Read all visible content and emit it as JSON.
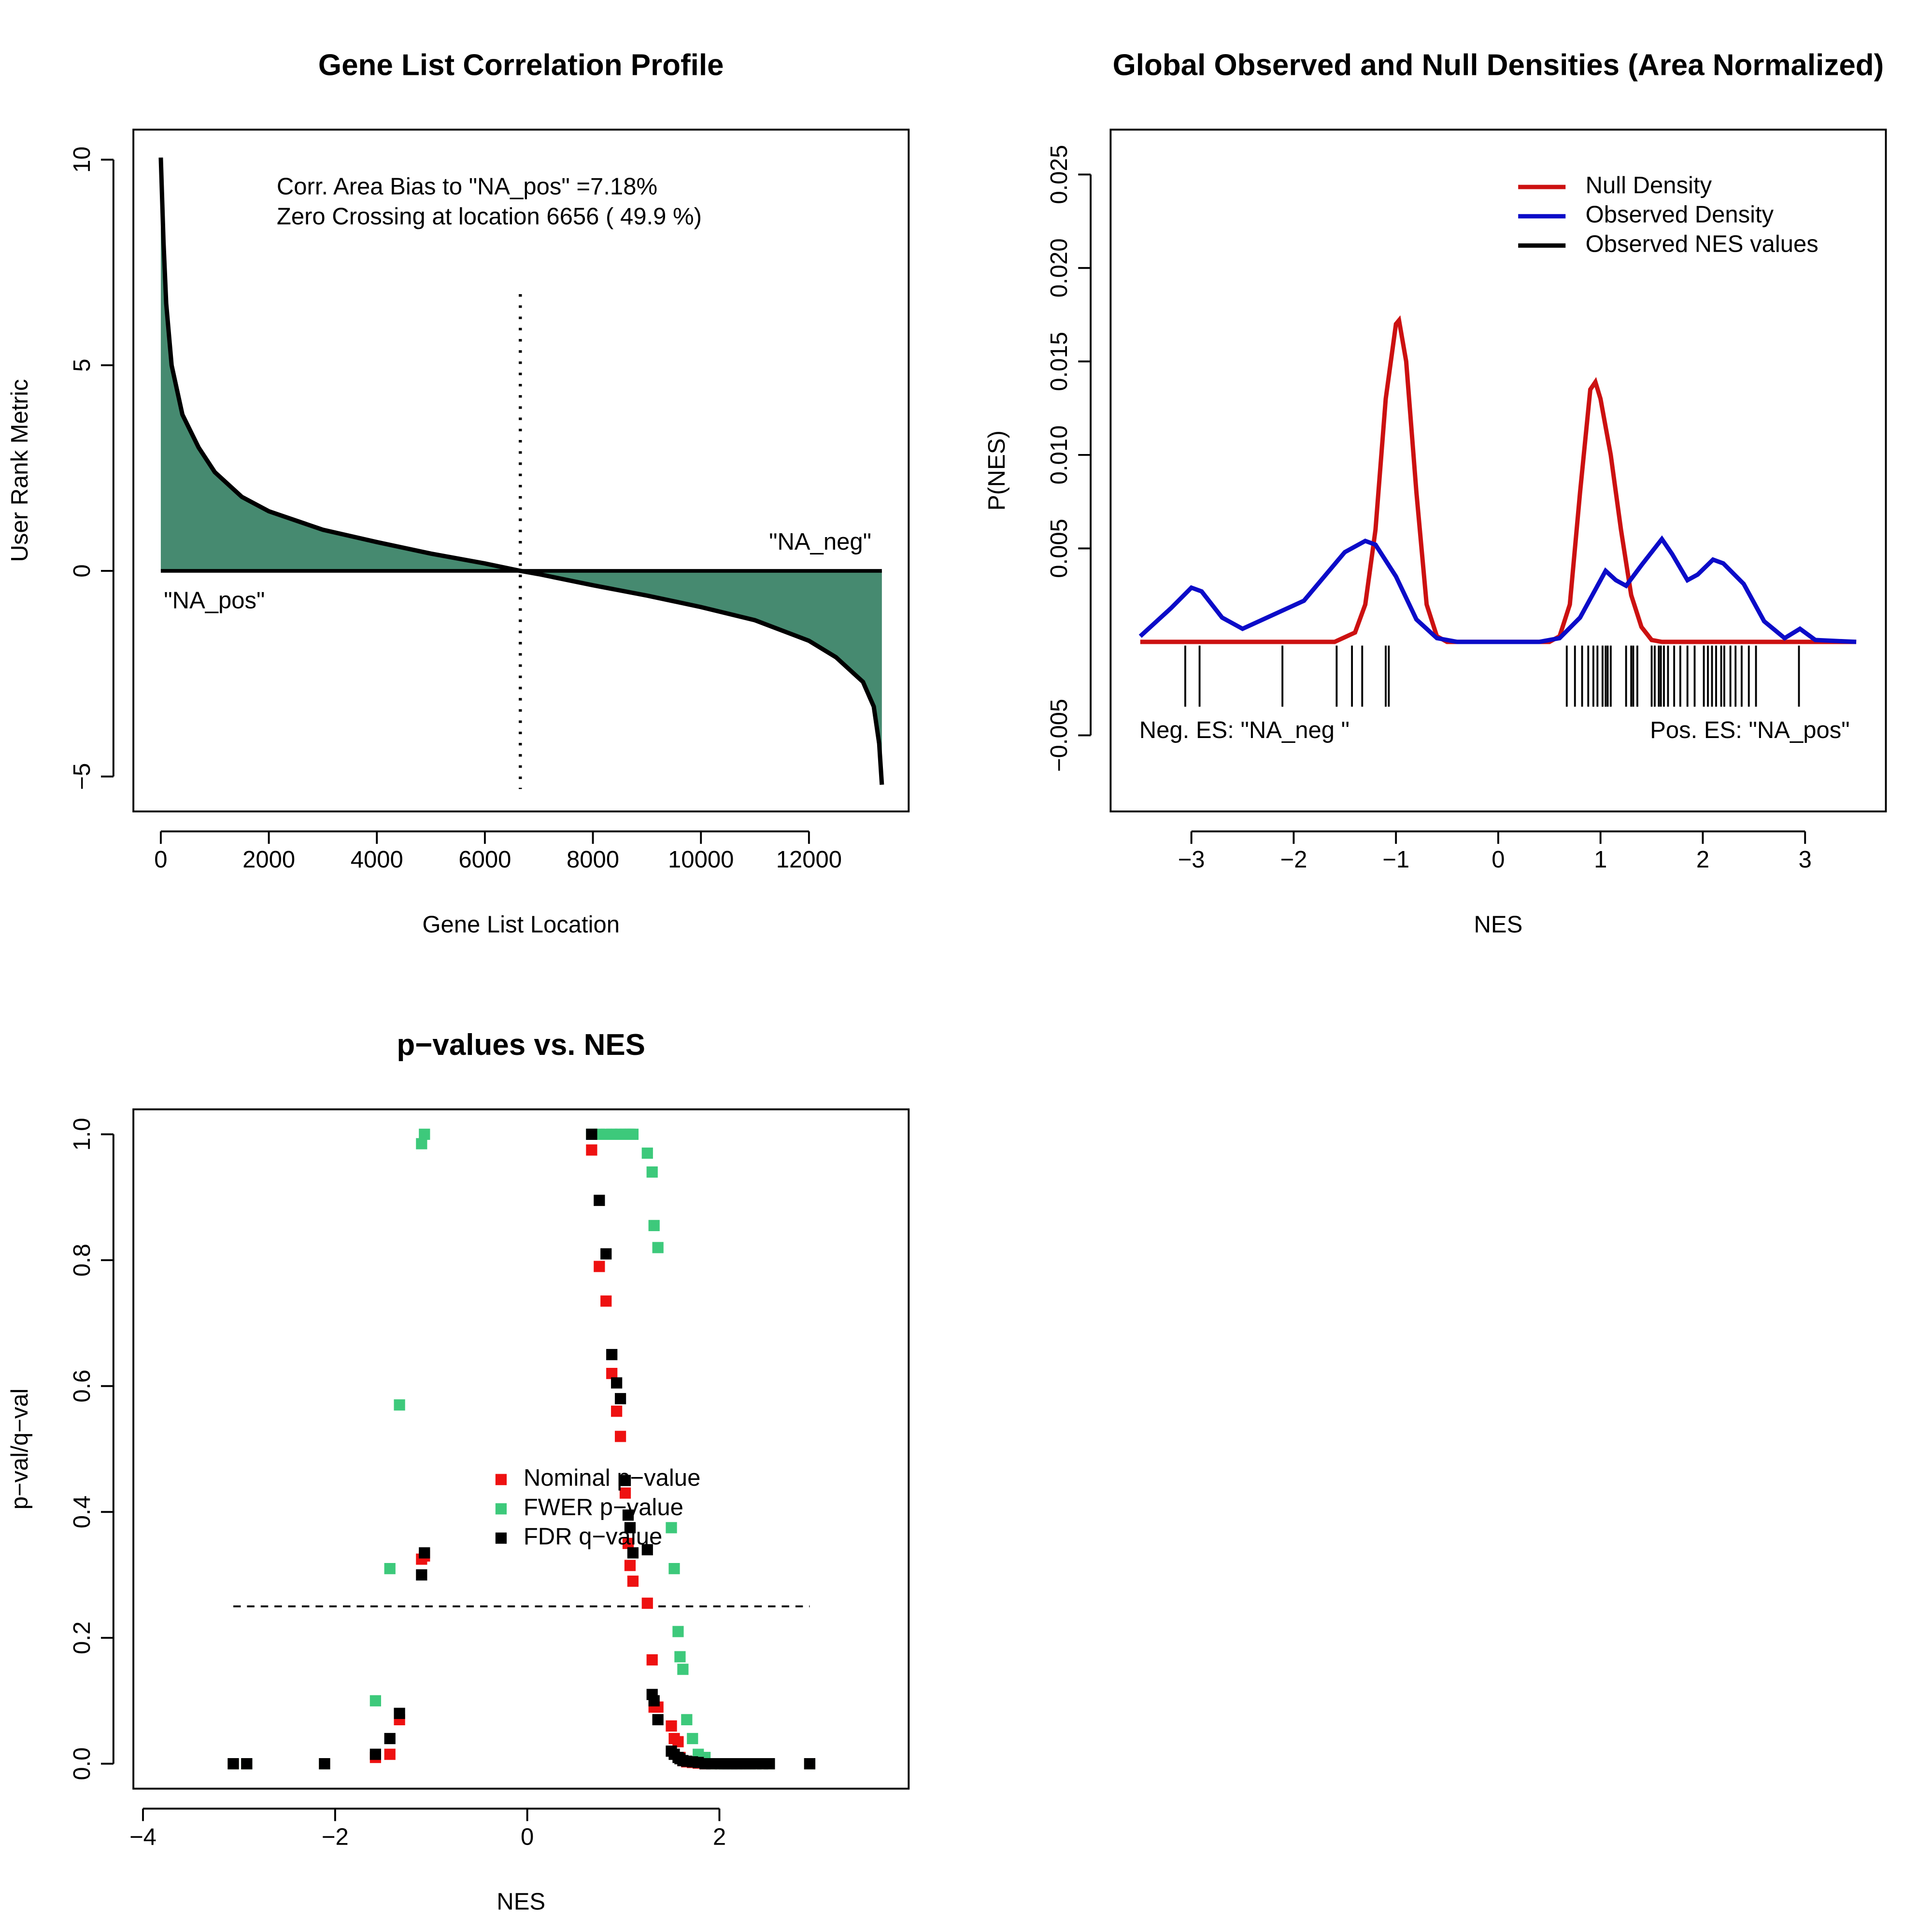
{
  "chart_data": [
    {
      "type": "area",
      "title": "Gene List Correlation Profile",
      "xlabel": "Gene List Location",
      "ylabel": "User Rank Metric",
      "x": [
        0,
        50,
        100,
        200,
        400,
        700,
        1000,
        1500,
        2000,
        3000,
        4000,
        5000,
        6000,
        6656,
        7000,
        8000,
        9000,
        10000,
        11000,
        12000,
        12500,
        13000,
        13200,
        13300,
        13350
      ],
      "values": [
        10.05,
        8,
        6.5,
        5,
        3.8,
        3.0,
        2.4,
        1.8,
        1.45,
        1.0,
        0.7,
        0.42,
        0.18,
        0,
        -0.08,
        -0.35,
        -0.6,
        -0.88,
        -1.2,
        -1.7,
        -2.1,
        -2.7,
        -3.3,
        -4.2,
        -5.2
      ],
      "color": "#468a70",
      "line_color": "#000000",
      "vline": 6656,
      "annotations": [
        "Corr. Area Bias to \"NA_pos\" =7.18%",
        "Zero Crossing at location  6656  ( 49.9  %)",
        "\"NA_neg\"",
        "\"NA_pos\""
      ],
      "xlim": [
        -508,
        13846
      ],
      "xticks": [
        0,
        2000,
        4000,
        6000,
        8000,
        10000,
        12000
      ],
      "ylim": [
        -5.85,
        10.73
      ],
      "yticks": [
        {
          "value": -5,
          "label": "−5"
        },
        0,
        5,
        10
      ]
    },
    {
      "type": "density",
      "title": "Global Observed and Null Densities (Area Normalized)",
      "xlabel": "NES",
      "ylabel": "P(NES)",
      "series": [
        {
          "name": "Null Density",
          "color": "#cc1111",
          "x": [
            -3.5,
            -1.6,
            -1.4,
            -1.3,
            -1.2,
            -1.1,
            -1.0,
            -0.97,
            -0.9,
            -0.8,
            -0.7,
            -0.6,
            -0.5,
            0.5,
            0.6,
            0.7,
            0.8,
            0.9,
            0.95,
            1.0,
            1.1,
            1.2,
            1.3,
            1.4,
            1.5,
            1.6,
            3.5
          ],
          "values": [
            0,
            0,
            0.0005,
            0.002,
            0.006,
            0.013,
            0.017,
            0.0172,
            0.015,
            0.008,
            0.002,
            0.0003,
            0,
            0,
            0.0003,
            0.002,
            0.008,
            0.0135,
            0.0139,
            0.013,
            0.01,
            0.006,
            0.0025,
            0.0008,
            0.0001,
            0,
            0
          ]
        },
        {
          "name": "Observed Density",
          "color": "#0b0bc8",
          "x": [
            -3.5,
            -3.2,
            -3.0,
            -2.9,
            -2.7,
            -2.5,
            -2.3,
            -2.1,
            -1.9,
            -1.7,
            -1.5,
            -1.3,
            -1.2,
            -1.0,
            -0.8,
            -0.6,
            -0.4,
            0.4,
            0.6,
            0.8,
            0.95,
            1.05,
            1.15,
            1.25,
            1.4,
            1.6,
            1.7,
            1.85,
            1.95,
            2.1,
            2.2,
            2.4,
            2.6,
            2.8,
            2.95,
            3.1,
            3.5
          ],
          "values": [
            0.0003,
            0.0018,
            0.0029,
            0.0027,
            0.0013,
            0.0007,
            0.0012,
            0.0017,
            0.0022,
            0.0035,
            0.0048,
            0.0054,
            0.0052,
            0.0035,
            0.0012,
            0.0002,
            0,
            0,
            0.0002,
            0.0013,
            0.0028,
            0.0038,
            0.0033,
            0.003,
            0.0041,
            0.0055,
            0.0047,
            0.0033,
            0.0036,
            0.0044,
            0.0042,
            0.0031,
            0.0011,
            0.0002,
            0.0007,
            0.0001,
            0
          ]
        },
        {
          "name": "Observed NES values",
          "color": "#000000",
          "mark": "rug",
          "values": [
            -3.06,
            -2.92,
            -2.11,
            -1.58,
            -1.43,
            -1.33,
            -1.1,
            -1.07,
            0.67,
            0.75,
            0.82,
            0.88,
            0.93,
            0.97,
            1.02,
            1.05,
            1.07,
            1.1,
            1.25,
            1.3,
            1.32,
            1.36,
            1.5,
            1.53,
            1.57,
            1.59,
            1.62,
            1.66,
            1.72,
            1.78,
            1.85,
            1.92,
            2.01,
            2.05,
            2.09,
            2.13,
            2.18,
            2.21,
            2.27,
            2.32,
            2.38,
            2.45,
            2.52,
            2.94
          ]
        }
      ],
      "annotations": [
        "Neg. ES: \"NA_neg \"",
        "Pos. ES: \"NA_pos\""
      ],
      "xlim": [
        -3.79,
        3.79
      ],
      "xticks": [
        {
          "value": -3,
          "label": "−3"
        },
        {
          "value": -2,
          "label": "−2"
        },
        {
          "value": -1,
          "label": "−1"
        },
        0,
        1,
        2,
        3
      ],
      "ylim": [
        -0.00907,
        0.0274
      ],
      "yticks": [
        {
          "value": -0.005,
          "label": "−0.005"
        },
        0.005,
        {
          "value": 0.01,
          "label": "0.010"
        },
        0.015,
        {
          "value": 0.02,
          "label": "0.020"
        },
        0.025
      ]
    },
    {
      "type": "scatter",
      "title": "p−values vs. NES",
      "xlabel": "NES",
      "ylabel": "p−val/q−val",
      "x": [
        -3.06,
        -2.92,
        -2.11,
        -1.58,
        -1.43,
        -1.33,
        -1.1,
        -1.07,
        0.67,
        0.75,
        0.82,
        0.88,
        0.93,
        0.97,
        1.02,
        1.05,
        1.07,
        1.1,
        1.25,
        1.3,
        1.32,
        1.36,
        1.5,
        1.53,
        1.57,
        1.59,
        1.62,
        1.66,
        1.72,
        1.78,
        1.85,
        1.92,
        2.01,
        2.05,
        2.09,
        2.13,
        2.18,
        2.21,
        2.27,
        2.32,
        2.38,
        2.45,
        2.52,
        2.94
      ],
      "series": [
        {
          "name": "Nominal p−value",
          "color": "#ee1111",
          "values": [
            0,
            0,
            0,
            0.01,
            0.015,
            0.07,
            0.325,
            0.33,
            0.975,
            0.79,
            0.735,
            0.62,
            0.56,
            0.52,
            0.43,
            0.35,
            0.315,
            0.29,
            0.255,
            0.165,
            0.09,
            0.09,
            0.06,
            0.04,
            0.035,
            0.01,
            0.005,
            0.003,
            0.002,
            0.001,
            0,
            0,
            0,
            0,
            0,
            0,
            0,
            0,
            0,
            0,
            0,
            0,
            0,
            0
          ]
        },
        {
          "name": "FWER p−value",
          "color": "#3dc97b",
          "values": [
            0,
            0,
            0,
            0.1,
            0.31,
            0.57,
            0.985,
            1,
            1,
            1,
            1,
            1,
            1,
            1,
            1,
            1,
            1,
            1,
            0.97,
            0.94,
            0.855,
            0.82,
            0.375,
            0.31,
            0.21,
            0.17,
            0.15,
            0.07,
            0.04,
            0.015,
            0.01,
            0,
            0,
            0,
            0,
            0,
            0,
            0,
            0,
            0,
            0,
            0,
            0,
            0
          ]
        },
        {
          "name": "FDR q−value",
          "color": "#000000",
          "values": [
            0,
            0,
            0,
            0.015,
            0.04,
            0.08,
            0.3,
            0.335,
            1,
            0.895,
            0.81,
            0.65,
            0.605,
            0.58,
            0.45,
            0.395,
            0.375,
            0.335,
            0.34,
            0.11,
            0.1,
            0.07,
            0.02,
            0.015,
            0.01,
            0.008,
            0.005,
            0.004,
            0.003,
            0.002,
            0,
            0,
            0,
            0,
            0,
            0,
            0,
            0,
            0,
            0,
            0,
            0,
            0,
            0
          ]
        }
      ],
      "hline": 0.25,
      "xlim": [
        -4.1,
        3.97
      ],
      "xticks": [
        {
          "value": -4,
          "label": "−4"
        },
        {
          "value": -2,
          "label": "−2"
        },
        0,
        2
      ],
      "ylim": [
        -0.0396,
        1.0396
      ],
      "yticks": [
        {
          "value": 0,
          "label": "0.0"
        },
        0.2,
        0.4,
        0.6,
        0.8,
        {
          "value": 1,
          "label": "1.0"
        }
      ]
    }
  ]
}
